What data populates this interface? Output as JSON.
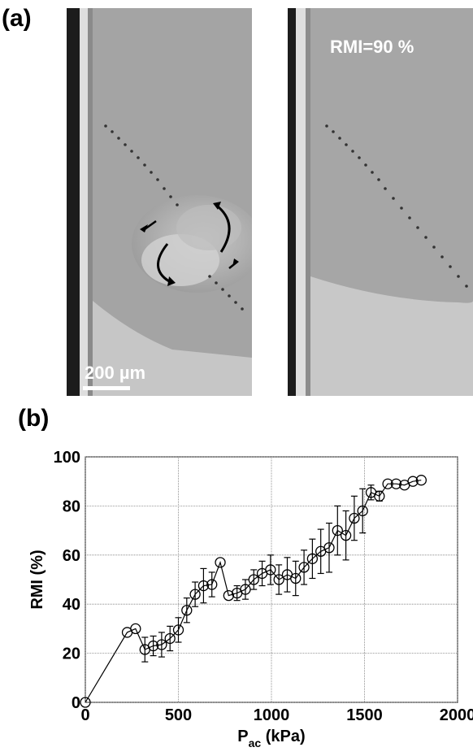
{
  "panels": {
    "a_letter": "(a)",
    "b_letter": "(b)"
  },
  "micrographs": {
    "right_label": "RMI=90 %",
    "scale_label": "200 µm"
  },
  "chart_data": {
    "type": "line",
    "title": "",
    "xlabel_main": "P",
    "xlabel_sub": "ac",
    "xlabel_unit": " (kPa)",
    "ylabel": "RMI (%)",
    "xlim": [
      0,
      2000
    ],
    "ylim": [
      0,
      100
    ],
    "xticks": [
      0,
      500,
      1000,
      1500,
      2000
    ],
    "xtick_labels": [
      "0",
      "500",
      "1000",
      "1500",
      "2000"
    ],
    "yticks": [
      0,
      20,
      40,
      60,
      80,
      100
    ],
    "ytick_labels": [
      "0",
      "20",
      "40",
      "60",
      "80",
      "100"
    ],
    "grid": true,
    "marker": "open-circle",
    "series": [
      {
        "name": "",
        "x": [
          0,
          225,
          270,
          320,
          365,
          410,
          455,
          500,
          545,
          590,
          635,
          680,
          725,
          770,
          815,
          860,
          905,
          950,
          995,
          1040,
          1085,
          1130,
          1175,
          1220,
          1265,
          1310,
          1355,
          1400,
          1445,
          1490,
          1535,
          1580,
          1625,
          1670,
          1715,
          1760,
          1805
        ],
        "y": [
          0,
          28.5,
          30,
          21.5,
          23,
          23.5,
          26,
          29.5,
          37.5,
          44,
          47.5,
          48,
          57,
          43.5,
          44.5,
          46,
          50,
          52.5,
          54,
          50,
          52,
          50.5,
          55,
          58.5,
          61.5,
          63,
          70,
          68,
          75,
          78,
          85.5,
          84,
          89,
          89,
          88.5,
          90,
          90.5
        ],
        "err": [
          0,
          0,
          0,
          5,
          4,
          5,
          5,
          5,
          5,
          5,
          7,
          5,
          0,
          0,
          3,
          4,
          4,
          5,
          6,
          6,
          7,
          7,
          7,
          8,
          9,
          10,
          10,
          10,
          9,
          9,
          3,
          2,
          0,
          0,
          0,
          0,
          0
        ]
      }
    ]
  }
}
